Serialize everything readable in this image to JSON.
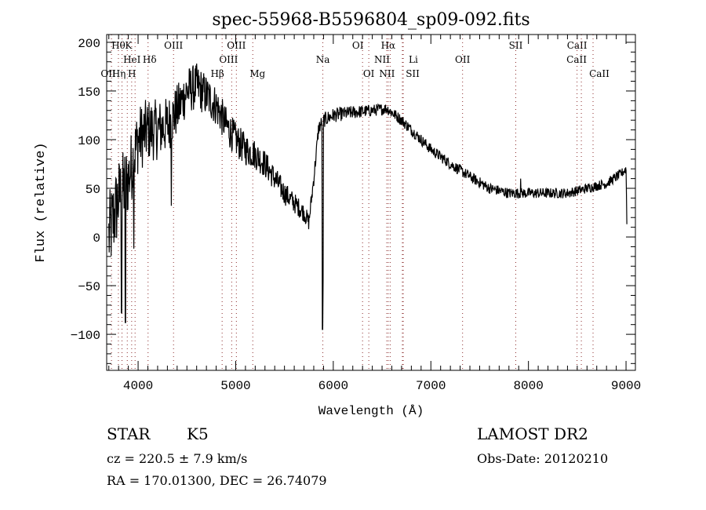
{
  "chart_data": {
    "type": "line",
    "title": "spec-55968-B5596804_sp09-092.fits",
    "xlabel": "Wavelength (Å)",
    "ylabel": "Flux (relative)",
    "xlim": [
      3678,
      9096
    ],
    "ylim": [
      -137,
      208
    ],
    "xticks": [
      4000,
      5000,
      6000,
      7000,
      8000,
      9000
    ],
    "yticks": [
      -100,
      -50,
      0,
      50,
      100,
      150,
      200
    ],
    "grid": false,
    "series": [
      {
        "name": "spectrum",
        "continuum": [
          [
            3700,
            0
          ],
          [
            3750,
            20
          ],
          [
            3800,
            40
          ],
          [
            3850,
            50
          ],
          [
            3900,
            60
          ],
          [
            3950,
            80
          ],
          [
            4000,
            100
          ],
          [
            4100,
            110
          ],
          [
            4200,
            110
          ],
          [
            4300,
            115
          ],
          [
            4400,
            130
          ],
          [
            4500,
            150
          ],
          [
            4600,
            155
          ],
          [
            4700,
            145
          ],
          [
            4800,
            135
          ],
          [
            4900,
            115
          ],
          [
            5000,
            100
          ],
          [
            5100,
            90
          ],
          [
            5200,
            85
          ],
          [
            5300,
            75
          ],
          [
            5400,
            60
          ],
          [
            5500,
            45
          ],
          [
            5600,
            35
          ],
          [
            5700,
            25
          ],
          [
            5750,
            15
          ],
          [
            5800,
            60
          ],
          [
            5850,
            112
          ],
          [
            5900,
            120
          ],
          [
            6000,
            125
          ],
          [
            6200,
            128
          ],
          [
            6400,
            130
          ],
          [
            6550,
            132
          ],
          [
            6700,
            120
          ],
          [
            6900,
            100
          ],
          [
            7000,
            90
          ],
          [
            7200,
            75
          ],
          [
            7400,
            62
          ],
          [
            7600,
            50
          ],
          [
            7800,
            45
          ],
          [
            8000,
            45
          ],
          [
            8200,
            45
          ],
          [
            8400,
            45
          ],
          [
            8600,
            50
          ],
          [
            8800,
            55
          ],
          [
            8950,
            65
          ],
          [
            9000,
            70
          ],
          [
            9010,
            0
          ]
        ],
        "noise": [
          [
            3700,
            45
          ],
          [
            4000,
            35
          ],
          [
            4500,
            25
          ],
          [
            5000,
            18
          ],
          [
            5500,
            12
          ],
          [
            5800,
            8
          ],
          [
            6500,
            6
          ],
          [
            9000,
            5
          ]
        ],
        "features": [
          [
            3830,
            -78
          ],
          [
            3870,
            -88
          ],
          [
            3955,
            -12
          ],
          [
            4340,
            32
          ],
          [
            5890,
            -95
          ],
          [
            5895,
            -45
          ],
          [
            7920,
            60
          ]
        ]
      }
    ],
    "lines": [
      {
        "label": "Hθ",
        "wavelength": 3798
      },
      {
        "label": "K",
        "wavelength": 3934
      },
      {
        "label": "HeI",
        "wavelength": 3889
      },
      {
        "label": "Hδ",
        "wavelength": 4102
      },
      {
        "label": "OII",
        "wavelength": 3727
      },
      {
        "label": "Hη",
        "wavelength": 3835
      },
      {
        "label": "H",
        "wavelength": 3969
      },
      {
        "label": "OIII",
        "wavelength": 4363
      },
      {
        "label": "OIII",
        "wavelength": 5007
      },
      {
        "label": "OIII",
        "wavelength": 4959
      },
      {
        "label": "Hβ",
        "wavelength": 4861
      },
      {
        "label": "Mg",
        "wavelength": 5175
      },
      {
        "label": "Na",
        "wavelength": 5893
      },
      {
        "label": "OI",
        "wavelength": 6300
      },
      {
        "label": "OI",
        "wavelength": 6364
      },
      {
        "label": "Hα",
        "wavelength": 6563
      },
      {
        "label": "NII",
        "wavelength": 6548
      },
      {
        "label": "Li",
        "wavelength": 6708
      },
      {
        "label": "NII",
        "wavelength": 6583
      },
      {
        "label": "SII",
        "wavelength": 6717
      },
      {
        "label": "OII",
        "wavelength": 7325
      },
      {
        "label": "SII",
        "wavelength": 7870
      },
      {
        "label": "CaII",
        "wavelength": 8498
      },
      {
        "label": "CaII",
        "wavelength": 8542
      },
      {
        "label": "CaII",
        "wavelength": 8662
      }
    ]
  },
  "info": {
    "object_class": "STAR",
    "subclass": "K5",
    "survey": "LAMOST DR2",
    "redshift": "cz = 220.5 ± 7.9 km/s",
    "obs_date": "Obs-Date: 20120210",
    "coords": "RA = 170.01300, DEC =  26.74079"
  }
}
